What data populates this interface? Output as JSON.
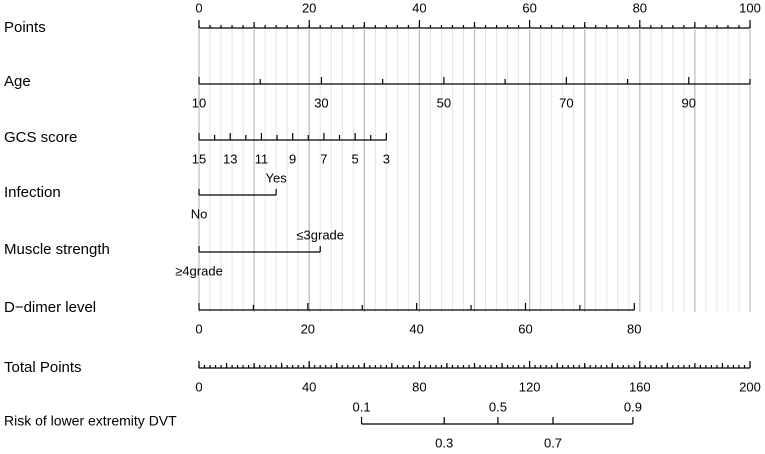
{
  "chart_data": {
    "type": "nomogram",
    "points": {
      "label": "Points",
      "lim": [
        0,
        100
      ],
      "ticks": [
        0,
        20,
        40,
        60,
        80,
        100
      ],
      "minor_ticks": [
        10,
        30,
        50,
        70,
        90
      ]
    },
    "variables": [
      {
        "label": "Age",
        "lim": [
          10,
          100
        ],
        "points": [
          0,
          100
        ],
        "ticks": [
          10,
          30,
          50,
          70,
          90
        ],
        "minor_ticks": [
          20,
          40,
          60,
          80,
          100
        ]
      },
      {
        "label": "GCS score",
        "lim": [
          15,
          3
        ],
        "points": [
          0,
          34
        ],
        "ticks": [
          15,
          13,
          11,
          9,
          7,
          5,
          3
        ],
        "minor_ticks": [
          14,
          12,
          10,
          8,
          6,
          4
        ]
      },
      {
        "label": "Infection",
        "levels": [
          {
            "label": "No",
            "points": 0
          },
          {
            "label": "Yes",
            "points": 14
          }
        ]
      },
      {
        "label": "Muscle strength",
        "levels": [
          {
            "label": "≥4grade",
            "points": 0
          },
          {
            "label": "≤3grade",
            "points": 22
          }
        ]
      },
      {
        "label": "D−dimer level",
        "lim": [
          0,
          80
        ],
        "points": [
          0,
          79
        ],
        "ticks": [
          0,
          20,
          40,
          60,
          80
        ],
        "minor_ticks": [
          10,
          30,
          50,
          70
        ]
      }
    ],
    "total_points": {
      "label": "Total Points",
      "lim": [
        0,
        200
      ],
      "ticks": [
        0,
        40,
        80,
        120,
        160,
        200
      ],
      "minor_ticks": [
        10,
        20,
        30,
        50,
        60,
        70,
        90,
        100,
        110,
        130,
        140,
        150,
        170,
        180,
        190
      ]
    },
    "risk": {
      "label": "Risk of lower extremity DVT",
      "ticks": [
        {
          "value": 0.1,
          "total_points": 59
        },
        {
          "value": 0.3,
          "total_points": 89
        },
        {
          "value": 0.5,
          "total_points": 108.5
        },
        {
          "value": 0.7,
          "total_points": 128.5
        },
        {
          "value": 0.9,
          "total_points": 157.5
        }
      ]
    }
  }
}
